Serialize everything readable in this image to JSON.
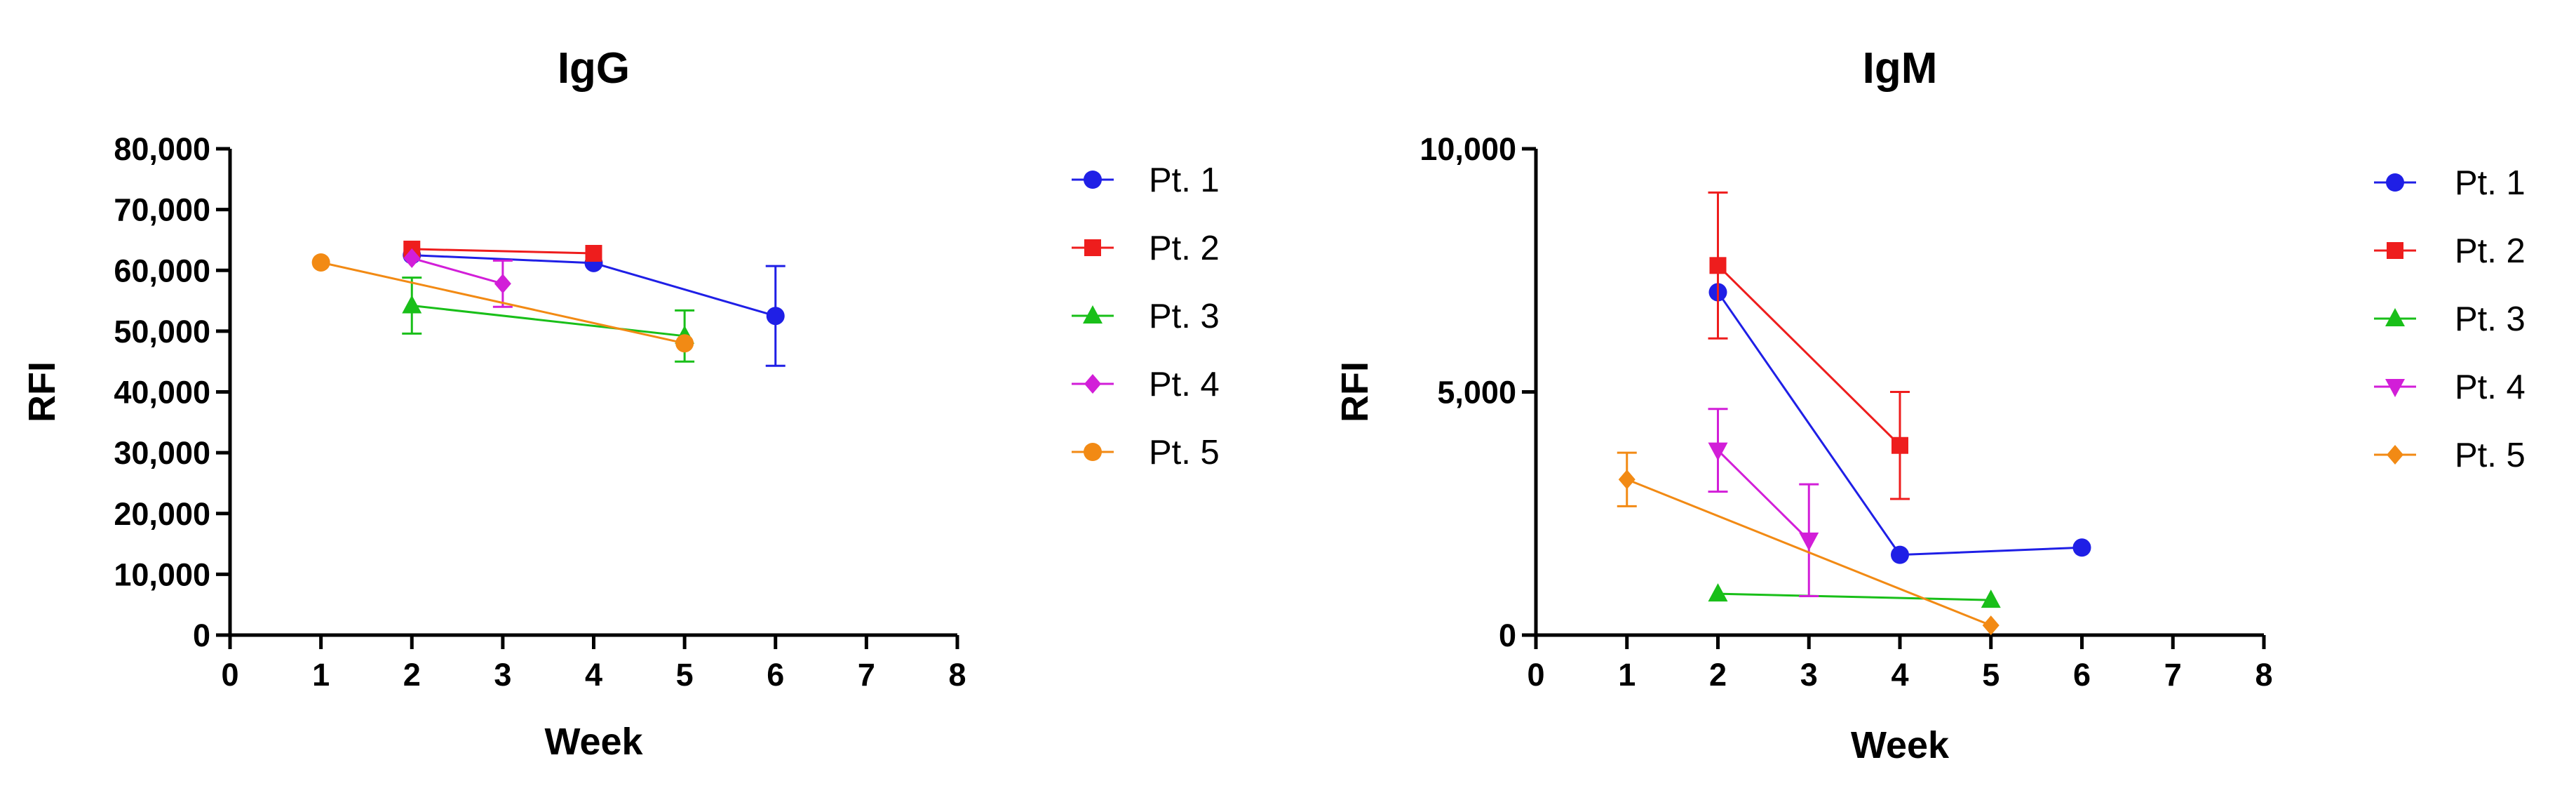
{
  "chart_data": [
    {
      "type": "line",
      "title": "IgG",
      "xlabel": "Week",
      "ylabel": "RFI",
      "xlim": [
        0,
        8
      ],
      "ylim": [
        0,
        80000
      ],
      "xticks": [
        "0",
        "1",
        "2",
        "3",
        "4",
        "5",
        "6",
        "7",
        "8"
      ],
      "yticks": [
        "0",
        "10,000",
        "20,000",
        "30,000",
        "40,000",
        "50,000",
        "60,000",
        "70,000",
        "80,000"
      ],
      "grid": false,
      "legend_position": "right",
      "series": [
        {
          "name": "Pt. 1",
          "color": "#1f1fe6",
          "marker": "circle",
          "x": [
            2,
            4,
            6
          ],
          "y": [
            62500,
            61200,
            52500
          ],
          "error": [
            0,
            0,
            8200
          ]
        },
        {
          "name": "Pt. 2",
          "color": "#ee1d1d",
          "marker": "square",
          "x": [
            2,
            4
          ],
          "y": [
            63500,
            62800
          ],
          "error": [
            0,
            0
          ]
        },
        {
          "name": "Pt. 3",
          "color": "#19bf19",
          "marker": "triangle",
          "x": [
            2,
            5
          ],
          "y": [
            54200,
            49200
          ],
          "error": [
            4600,
            4200
          ]
        },
        {
          "name": "Pt. 4",
          "color": "#d21ed8",
          "marker": "diamond",
          "x": [
            2,
            3
          ],
          "y": [
            62000,
            57800
          ],
          "error": [
            0,
            3800
          ]
        },
        {
          "name": "Pt. 5",
          "color": "#f28a14",
          "marker": "circle",
          "x": [
            1,
            5
          ],
          "y": [
            61300,
            48000
          ],
          "error": [
            0,
            0
          ]
        }
      ]
    },
    {
      "type": "line",
      "title": "IgM",
      "xlabel": "Week",
      "ylabel": "RFI",
      "xlim": [
        0,
        8
      ],
      "ylim": [
        0,
        10000
      ],
      "xticks": [
        "0",
        "1",
        "2",
        "3",
        "4",
        "5",
        "6",
        "7",
        "8"
      ],
      "yticks": [
        "0",
        "5,000",
        "10,000"
      ],
      "grid": false,
      "legend_position": "right",
      "series": [
        {
          "name": "Pt. 1",
          "color": "#1f1fe6",
          "marker": "circle",
          "x": [
            2,
            4,
            6
          ],
          "y": [
            7050,
            1650,
            1800
          ],
          "error": [
            0,
            0,
            0
          ]
        },
        {
          "name": "Pt. 2",
          "color": "#ee1d1d",
          "marker": "square",
          "x": [
            2,
            4
          ],
          "y": [
            7600,
            3900
          ],
          "error": [
            1500,
            1100
          ]
        },
        {
          "name": "Pt. 3",
          "color": "#19bf19",
          "marker": "triangle",
          "x": [
            2,
            5
          ],
          "y": [
            850,
            720
          ],
          "error": [
            0,
            0
          ]
        },
        {
          "name": "Pt. 4",
          "color": "#d21ed8",
          "marker": "triangle-down",
          "x": [
            2,
            3
          ],
          "y": [
            3800,
            1950
          ],
          "error": [
            850,
            1150
          ]
        },
        {
          "name": "Pt. 5",
          "color": "#f28a14",
          "marker": "diamond",
          "x": [
            1,
            5
          ],
          "y": [
            3200,
            200
          ],
          "error": [
            550,
            0
          ]
        }
      ]
    }
  ]
}
